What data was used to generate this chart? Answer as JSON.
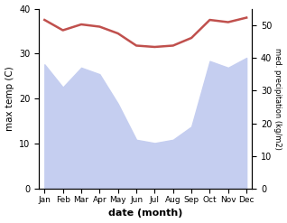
{
  "months": [
    "Jan",
    "Feb",
    "Mar",
    "Apr",
    "May",
    "Jun",
    "Jul",
    "Aug",
    "Sep",
    "Oct",
    "Nov",
    "Dec"
  ],
  "month_indices": [
    0,
    1,
    2,
    3,
    4,
    5,
    6,
    7,
    8,
    9,
    10,
    11
  ],
  "temperature": [
    37.5,
    35.2,
    36.5,
    36.0,
    34.5,
    31.8,
    31.5,
    31.8,
    33.5,
    37.5,
    37.0,
    38.0
  ],
  "precipitation": [
    190,
    155,
    185,
    175,
    130,
    75,
    70,
    75,
    95,
    195,
    185,
    200
  ],
  "temp_color": "#c0504d",
  "precip_fill_color": "#c5cef0",
  "temp_ylim": [
    0,
    40
  ],
  "precip_ylim": [
    0,
    275
  ],
  "xlabel": "date (month)",
  "ylabel_left": "max temp (C)",
  "ylabel_right": "med. precipitation (kg/m2)",
  "right_yticks": [
    0,
    10,
    20,
    30,
    40,
    50
  ],
  "right_ytick_vals": [
    0,
    27.5,
    55,
    82.5,
    110,
    137.5
  ],
  "background_color": "#ffffff",
  "temp_linewidth": 1.8
}
